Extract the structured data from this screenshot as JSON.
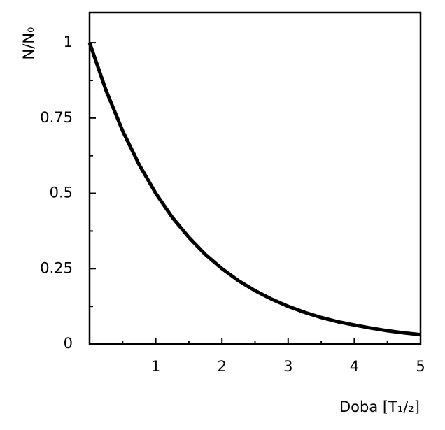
{
  "chart_data": {
    "type": "line",
    "y_label": "N/N₀",
    "x_label": "Doba [T₁/₂]",
    "x": [
      0,
      0.25,
      0.5,
      0.75,
      1,
      1.25,
      1.5,
      1.75,
      2,
      2.25,
      2.5,
      2.75,
      3,
      3.25,
      3.5,
      3.75,
      4,
      4.25,
      4.5,
      4.75,
      5
    ],
    "values": [
      1,
      0.841,
      0.707,
      0.595,
      0.5,
      0.42,
      0.354,
      0.297,
      0.25,
      0.21,
      0.177,
      0.149,
      0.125,
      0.105,
      0.088,
      0.074,
      0.063,
      0.053,
      0.044,
      0.037,
      0.031
    ],
    "color": "#000000",
    "xlim": [
      0,
      5
    ],
    "xticks": [
      1,
      2,
      3,
      4,
      5
    ],
    "xminorticks": [
      0.5,
      1.5,
      2.5,
      3.5,
      4.5
    ],
    "ylim": [
      0,
      1.1
    ],
    "yticks": [
      0,
      0.25,
      0.5,
      0.75,
      1
    ],
    "yminorticks": [
      0.125,
      0.375,
      0.625,
      0.875
    ],
    "grid": false
  }
}
